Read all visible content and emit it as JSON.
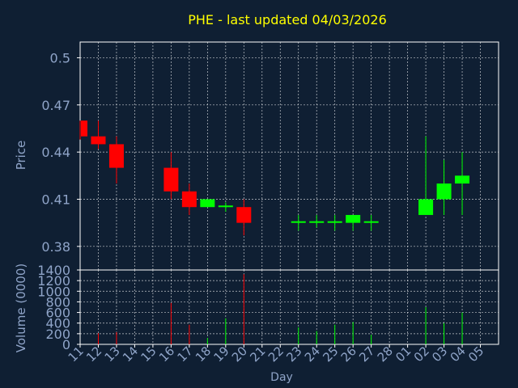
{
  "title": "PHE - last updated 04/03/2026",
  "colors": {
    "background": "#0f1f33",
    "axis": "#ffffff",
    "grid": "#ffffff",
    "title": "#ffff00",
    "tick_label": "#8fa4c8",
    "up": "#00ff00",
    "down": "#ff0000"
  },
  "chart_data": [
    {
      "type": "candlestick",
      "ylabel": "Price",
      "ylim": [
        0.365,
        0.51
      ],
      "yticks": [
        0.38,
        0.41,
        0.44,
        0.47,
        0.5
      ],
      "ytick_labels": [
        "0.38",
        "0.41",
        "0.44",
        "0.47",
        "0.5"
      ],
      "grid": true,
      "candles": [
        {
          "day": "11",
          "open": 0.46,
          "close": 0.45,
          "high": 0.46,
          "low": 0.448
        },
        {
          "day": "12",
          "open": 0.45,
          "close": 0.445,
          "high": 0.46,
          "low": 0.442
        },
        {
          "day": "13",
          "open": 0.445,
          "close": 0.43,
          "high": 0.45,
          "low": 0.42
        },
        {
          "day": "16",
          "open": 0.43,
          "close": 0.415,
          "high": 0.44,
          "low": 0.41
        },
        {
          "day": "17",
          "open": 0.415,
          "close": 0.405,
          "high": 0.42,
          "low": 0.4
        },
        {
          "day": "18",
          "open": 0.405,
          "close": 0.41,
          "high": 0.41,
          "low": 0.405
        },
        {
          "day": "19",
          "open": 0.405,
          "close": 0.406,
          "high": 0.408,
          "low": 0.402
        },
        {
          "day": "20",
          "open": 0.405,
          "close": 0.395,
          "high": 0.41,
          "low": 0.387
        },
        {
          "day": "23",
          "open": 0.395,
          "close": 0.396,
          "high": 0.4,
          "low": 0.39
        },
        {
          "day": "24",
          "open": 0.395,
          "close": 0.396,
          "high": 0.4,
          "low": 0.392
        },
        {
          "day": "25",
          "open": 0.395,
          "close": 0.396,
          "high": 0.4,
          "low": 0.39
        },
        {
          "day": "26",
          "open": 0.395,
          "close": 0.4,
          "high": 0.4,
          "low": 0.39
        },
        {
          "day": "27",
          "open": 0.395,
          "close": 0.396,
          "high": 0.4,
          "low": 0.39
        },
        {
          "day": "02",
          "open": 0.4,
          "close": 0.41,
          "high": 0.45,
          "low": 0.4
        },
        {
          "day": "03",
          "open": 0.41,
          "close": 0.42,
          "high": 0.435,
          "low": 0.4
        },
        {
          "day": "04",
          "open": 0.42,
          "close": 0.425,
          "high": 0.44,
          "low": 0.4
        }
      ]
    },
    {
      "type": "bar",
      "ylabel": "Volume (0000)",
      "xlabel": "Day",
      "ylim": [
        0,
        1400
      ],
      "yticks": [
        0,
        200,
        400,
        600,
        800,
        1000,
        1200,
        1400
      ],
      "ytick_labels": [
        "0",
        "200",
        "400",
        "600",
        "800",
        "1000",
        "1200",
        "1400"
      ],
      "grid": true,
      "x_categories": [
        "11",
        "12",
        "13",
        "14",
        "15",
        "16",
        "17",
        "18",
        "19",
        "20",
        "21",
        "22",
        "23",
        "24",
        "25",
        "26",
        "27",
        "28",
        "01",
        "02",
        "03",
        "04",
        "05"
      ],
      "volumes": [
        {
          "day": "12",
          "value": 210,
          "direction": "down"
        },
        {
          "day": "13",
          "value": 230,
          "direction": "down"
        },
        {
          "day": "16",
          "value": 780,
          "direction": "down"
        },
        {
          "day": "17",
          "value": 370,
          "direction": "down"
        },
        {
          "day": "18",
          "value": 120,
          "direction": "up"
        },
        {
          "day": "19",
          "value": 490,
          "direction": "up"
        },
        {
          "day": "20",
          "value": 1320,
          "direction": "down"
        },
        {
          "day": "23",
          "value": 320,
          "direction": "up"
        },
        {
          "day": "24",
          "value": 250,
          "direction": "up"
        },
        {
          "day": "25",
          "value": 370,
          "direction": "up"
        },
        {
          "day": "26",
          "value": 420,
          "direction": "up"
        },
        {
          "day": "27",
          "value": 180,
          "direction": "up"
        },
        {
          "day": "02",
          "value": 700,
          "direction": "up"
        },
        {
          "day": "03",
          "value": 400,
          "direction": "up"
        },
        {
          "day": "04",
          "value": 600,
          "direction": "up"
        }
      ]
    }
  ]
}
